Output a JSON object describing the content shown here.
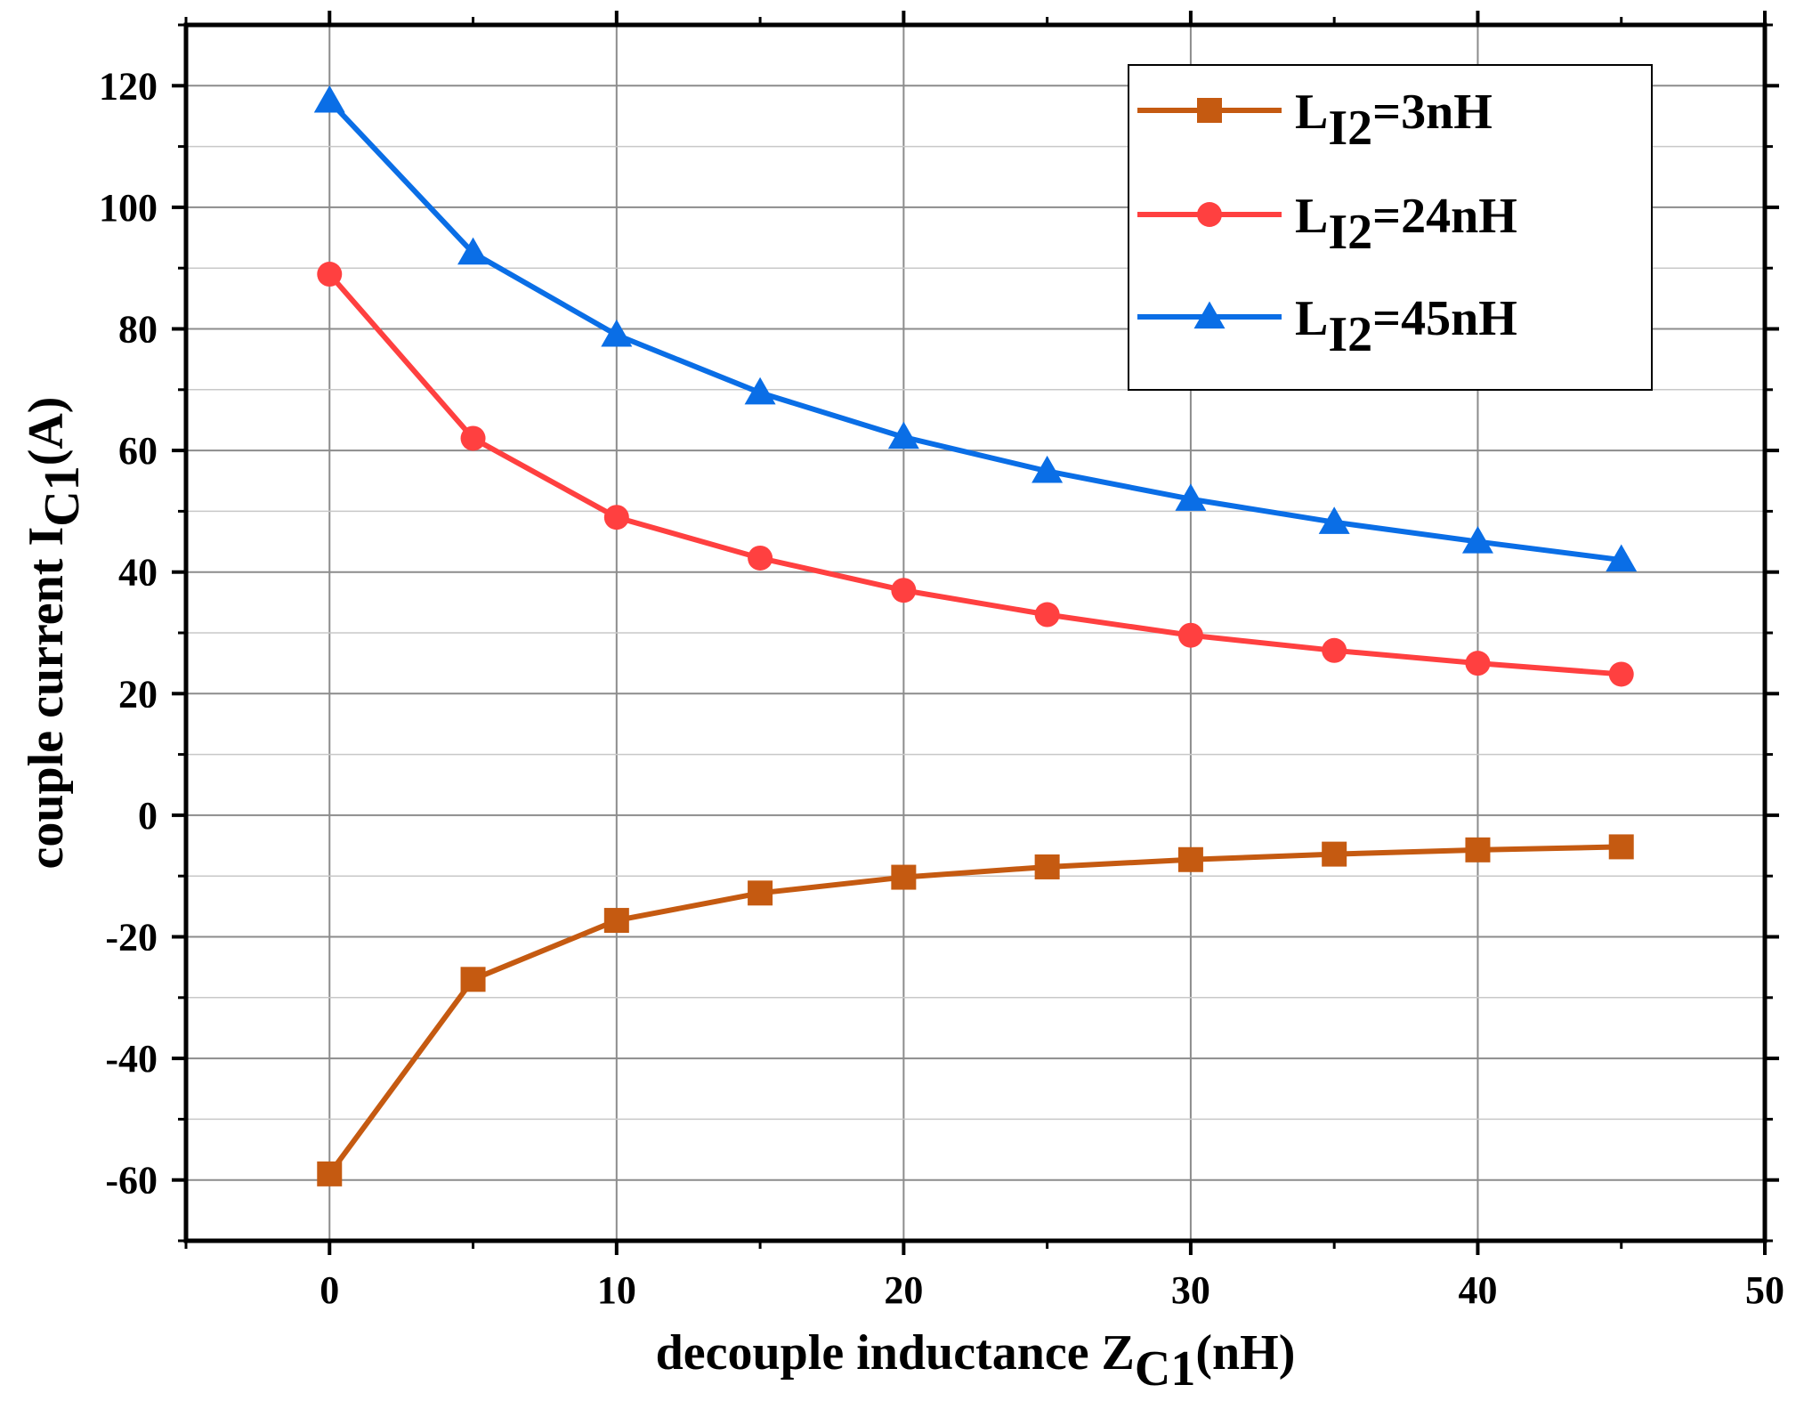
{
  "chart_data": {
    "type": "line",
    "xlabel": {
      "main": "decouple inductance Z",
      "sub": "C1",
      "suffix": "(nH)"
    },
    "ylabel": {
      "main": "couple current I",
      "sub": "C1",
      "suffix": "(A)"
    },
    "xlim": [
      -5,
      50
    ],
    "ylim": [
      -70,
      130
    ],
    "xticks": [
      0,
      10,
      20,
      30,
      40,
      50
    ],
    "yticks": [
      -60,
      -40,
      -20,
      0,
      20,
      40,
      60,
      80,
      100,
      120
    ],
    "xtick_labels": [
      "0",
      "10",
      "20",
      "30",
      "40",
      "50"
    ],
    "ytick_labels": [
      "-60",
      "-40",
      "-20",
      "0",
      "20",
      "40",
      "60",
      "80",
      "100",
      "120"
    ],
    "grid": true,
    "legend_position": "top-right",
    "x": [
      0,
      5,
      10,
      15,
      20,
      25,
      30,
      35,
      40,
      45
    ],
    "series": [
      {
        "name": "L_I2=3nH",
        "label_main": "L",
        "label_sub": "I2",
        "label_rest": "=3nH",
        "color": "#c55a11",
        "marker": "square",
        "values": [
          -59,
          -27,
          -17.3,
          -12.8,
          -10.2,
          -8.5,
          -7.3,
          -6.4,
          -5.7,
          -5.2
        ]
      },
      {
        "name": "L_I2=24nH",
        "label_main": "L",
        "label_sub": "I2",
        "label_rest": "=24nH",
        "color": "#ff4040",
        "marker": "circle",
        "values": [
          89,
          62,
          49,
          42.3,
          37,
          33,
          29.6,
          27.1,
          25,
          23.2
        ]
      },
      {
        "name": "L_I2=45nH",
        "label_main": "L",
        "label_sub": "I2",
        "label_rest": "=45nH",
        "color": "#0a6ee6",
        "marker": "triangle",
        "values": [
          117.5,
          92.5,
          79,
          69.5,
          62.2,
          56.6,
          52,
          48.2,
          45,
          42
        ]
      }
    ]
  }
}
